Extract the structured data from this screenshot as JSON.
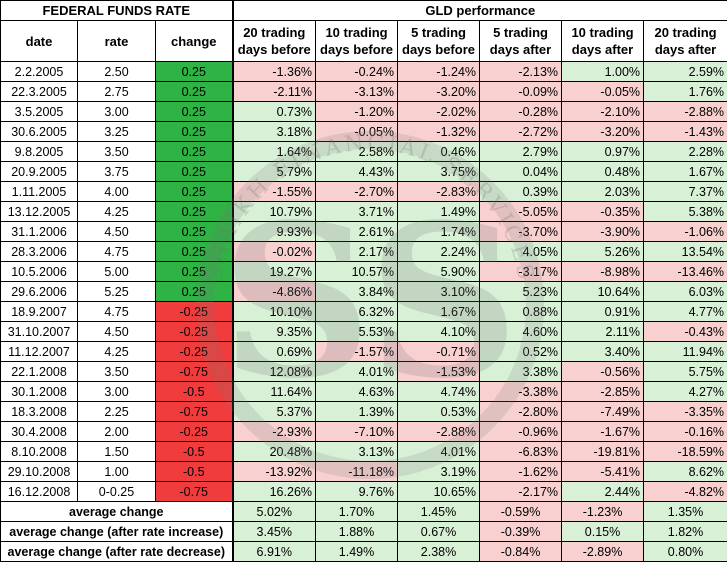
{
  "header": {
    "fed_title": "FEDERAL FUNDS RATE",
    "gld_title": "GLD performance",
    "col_date": "date",
    "col_rate": "rate",
    "col_change": "change",
    "periods": [
      "20 trading days before",
      "10 trading days before",
      "5 trading days before",
      "5 trading days after",
      "10 trading days after",
      "20 trading days after"
    ]
  },
  "rows": [
    {
      "date": "2.2.2005",
      "rate": "2.50",
      "change": "0.25",
      "dir": "up",
      "v": [
        "-1.36%",
        "-0.24%",
        "-1.24%",
        "-2.13%",
        "1.00%",
        "2.59%"
      ]
    },
    {
      "date": "22.3.2005",
      "rate": "2.75",
      "change": "0.25",
      "dir": "up",
      "v": [
        "-2.11%",
        "-3.13%",
        "-3.20%",
        "-0.09%",
        "-0.05%",
        "1.76%"
      ]
    },
    {
      "date": "3.5.2005",
      "rate": "3.00",
      "change": "0.25",
      "dir": "up",
      "v": [
        "0.73%",
        "-1.20%",
        "-2.02%",
        "-0.28%",
        "-2.10%",
        "-2.88%"
      ]
    },
    {
      "date": "30.6.2005",
      "rate": "3.25",
      "change": "0.25",
      "dir": "up",
      "v": [
        "3.18%",
        "-0.05%",
        "-1.32%",
        "-2.72%",
        "-3.20%",
        "-1.43%"
      ]
    },
    {
      "date": "9.8.2005",
      "rate": "3.50",
      "change": "0.25",
      "dir": "up",
      "v": [
        "1.64%",
        "2.58%",
        "0.46%",
        "2.79%",
        "0.97%",
        "2.28%"
      ]
    },
    {
      "date": "20.9.2005",
      "rate": "3.75",
      "change": "0.25",
      "dir": "up",
      "v": [
        "5.79%",
        "4.43%",
        "3.75%",
        "0.04%",
        "0.48%",
        "1.67%"
      ]
    },
    {
      "date": "1.11.2005",
      "rate": "4.00",
      "change": "0.25",
      "dir": "up",
      "v": [
        "-1.55%",
        "-2.70%",
        "-2.83%",
        "0.39%",
        "2.03%",
        "7.37%"
      ]
    },
    {
      "date": "13.12.2005",
      "rate": "4.25",
      "change": "0.25",
      "dir": "up",
      "v": [
        "10.79%",
        "3.71%",
        "1.49%",
        "-5.05%",
        "-0.35%",
        "5.38%"
      ]
    },
    {
      "date": "31.1.2006",
      "rate": "4.50",
      "change": "0.25",
      "dir": "up",
      "v": [
        "9.93%",
        "2.61%",
        "1.74%",
        "-3.70%",
        "-3.90%",
        "-1.06%"
      ]
    },
    {
      "date": "28.3.2006",
      "rate": "4.75",
      "change": "0.25",
      "dir": "up",
      "v": [
        "-0.02%",
        "2.17%",
        "2.24%",
        "4.05%",
        "5.26%",
        "13.54%"
      ]
    },
    {
      "date": "10.5.2006",
      "rate": "5.00",
      "change": "0.25",
      "dir": "up",
      "v": [
        "19.27%",
        "10.57%",
        "5.90%",
        "-3.17%",
        "-8.98%",
        "-13.46%"
      ]
    },
    {
      "date": "29.6.2006",
      "rate": "5.25",
      "change": "0.25",
      "dir": "up",
      "v": [
        "-4.86%",
        "3.84%",
        "3.10%",
        "5.23%",
        "10.64%",
        "6.03%"
      ]
    },
    {
      "date": "18.9.2007",
      "rate": "4.75",
      "change": "-0.25",
      "dir": "down",
      "v": [
        "10.10%",
        "6.32%",
        "1.67%",
        "0.88%",
        "0.91%",
        "4.77%"
      ]
    },
    {
      "date": "31.10.2007",
      "rate": "4.50",
      "change": "-0.25",
      "dir": "down",
      "v": [
        "9.35%",
        "5.53%",
        "4.10%",
        "4.60%",
        "2.11%",
        "-0.43%"
      ]
    },
    {
      "date": "11.12.2007",
      "rate": "4.25",
      "change": "-0.25",
      "dir": "down",
      "v": [
        "0.69%",
        "-1.57%",
        "-0.71%",
        "0.52%",
        "3.40%",
        "11.94%"
      ]
    },
    {
      "date": "22.1.2008",
      "rate": "3.50",
      "change": "-0.75",
      "dir": "down",
      "v": [
        "12.08%",
        "4.01%",
        "-1.53%",
        "3.38%",
        "-0.56%",
        "5.75%"
      ]
    },
    {
      "date": "30.1.2008",
      "rate": "3.00",
      "change": "-0.5",
      "dir": "down",
      "v": [
        "11.64%",
        "4.63%",
        "4.74%",
        "-3.38%",
        "-2.85%",
        "4.27%"
      ]
    },
    {
      "date": "18.3.2008",
      "rate": "2.25",
      "change": "-0.75",
      "dir": "down",
      "v": [
        "5.37%",
        "1.39%",
        "0.53%",
        "-2.80%",
        "-7.49%",
        "-3.35%"
      ]
    },
    {
      "date": "30.4.2008",
      "rate": "2.00",
      "change": "-0.25",
      "dir": "down",
      "v": [
        "-2.93%",
        "-7.10%",
        "-2.88%",
        "-0.96%",
        "-1.67%",
        "-0.16%"
      ]
    },
    {
      "date": "8.10.2008",
      "rate": "1.50",
      "change": "-0.5",
      "dir": "down",
      "v": [
        "20.48%",
        "3.13%",
        "4.01%",
        "-6.83%",
        "-19.81%",
        "-18.59%"
      ]
    },
    {
      "date": "29.10.2008",
      "rate": "1.00",
      "change": "-0.5",
      "dir": "down",
      "v": [
        "-13.92%",
        "-11.18%",
        "3.19%",
        "-1.62%",
        "-5.41%",
        "8.62%"
      ]
    },
    {
      "date": "16.12.2008",
      "rate": "0-0.25",
      "change": "-0.75",
      "dir": "down",
      "v": [
        "16.26%",
        "9.76%",
        "10.65%",
        "-2.17%",
        "2.44%",
        "-4.82%"
      ]
    }
  ],
  "summary": [
    {
      "label": "average change",
      "v": [
        "5.02%",
        "1.70%",
        "1.45%",
        "-0.59%",
        "-1.23%",
        "1.35%"
      ]
    },
    {
      "label": "average change (after rate increase)",
      "v": [
        "3.45%",
        "1.88%",
        "0.67%",
        "-0.39%",
        "0.15%",
        "1.82%"
      ]
    },
    {
      "label": "average change (after rate decrease)",
      "v": [
        "6.91%",
        "1.49%",
        "2.38%",
        "-0.84%",
        "-2.89%",
        "0.80%"
      ]
    }
  ],
  "watermark": {
    "monogram": "SS",
    "arc_text": "SHAIKH FINANCIAL SERVICES"
  },
  "colors": {
    "increase": "#2fb344",
    "decrease": "#f03c3c",
    "positive_cell": "#d8f0d6",
    "negative_cell": "#f8d0d0"
  }
}
